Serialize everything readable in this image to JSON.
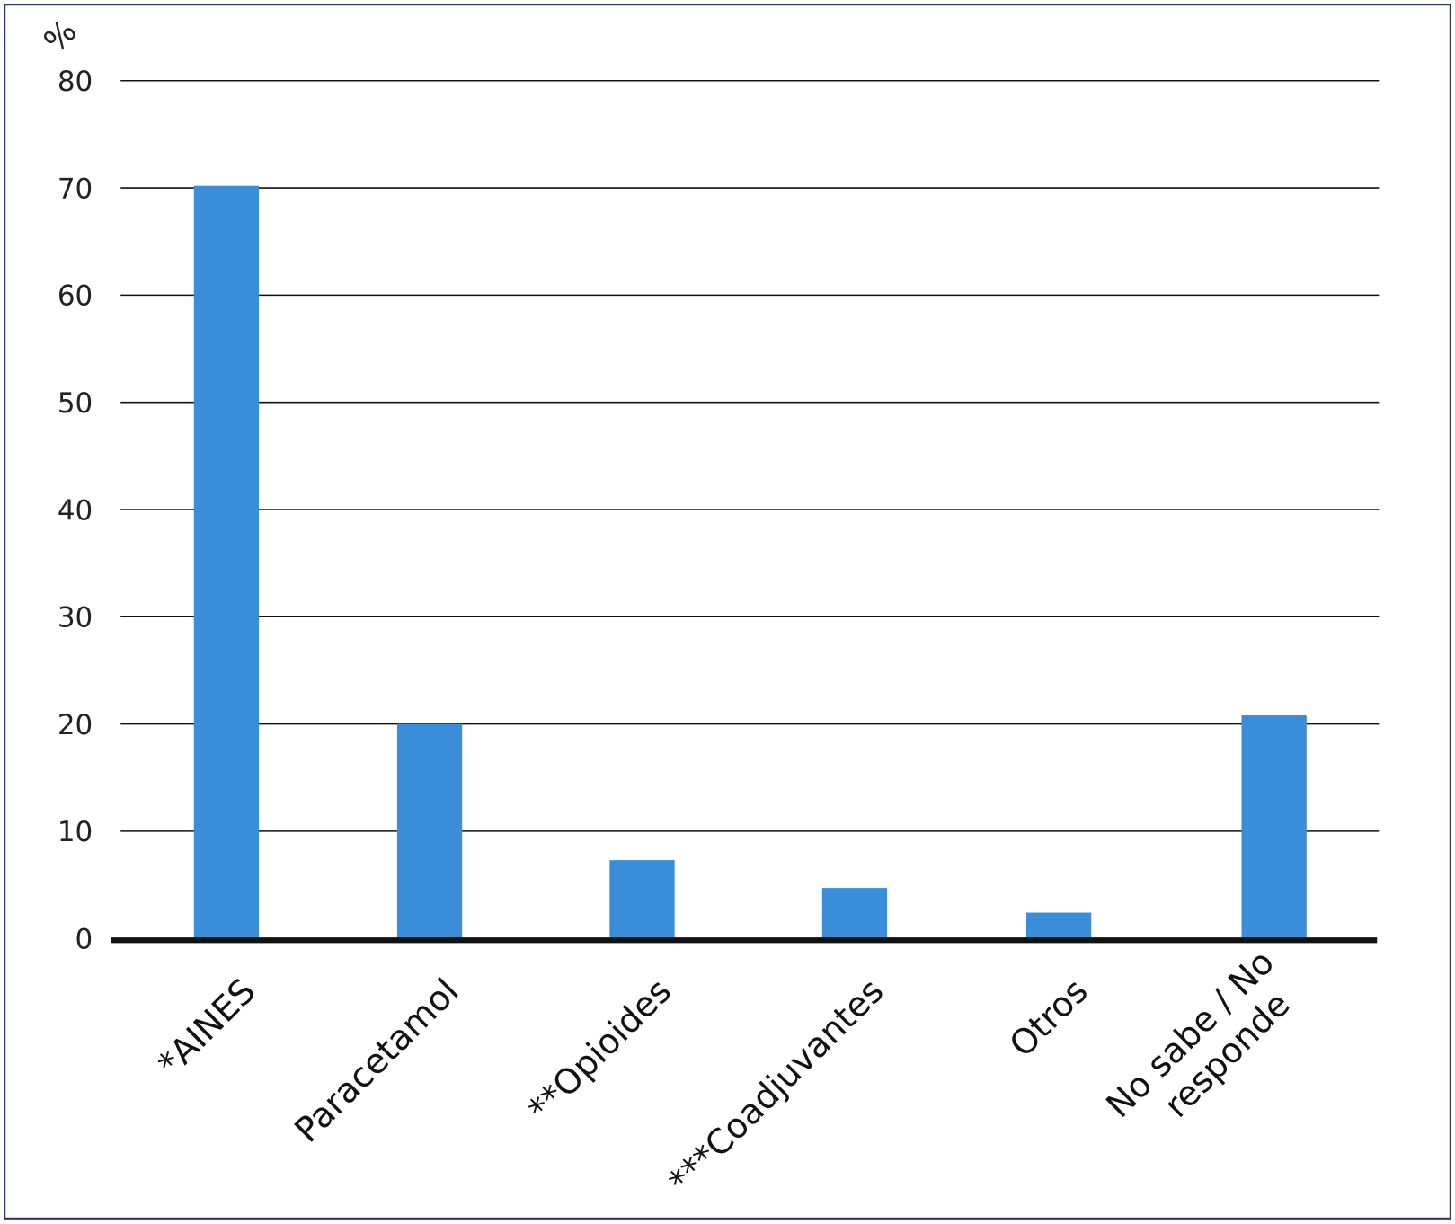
{
  "chart_data": {
    "type": "bar",
    "ylabel": "%",
    "categories": [
      "*AINES",
      "Paracetamol",
      "**Opioides",
      "***Coadjuvantes",
      "Otros",
      "No sabe / No responde"
    ],
    "category_lines": [
      [
        "*AINES"
      ],
      [
        "Paracetamol"
      ],
      [
        "**Opioides"
      ],
      [
        "***Coadjuvantes"
      ],
      [
        "Otros"
      ],
      [
        "No sabe / No",
        "responde"
      ]
    ],
    "values": [
      70.2,
      20.0,
      7.3,
      4.7,
      2.4,
      20.8
    ],
    "ylim": [
      0,
      80
    ],
    "yticks": [
      0,
      10,
      20,
      30,
      40,
      50,
      60,
      70,
      80
    ],
    "grid": true,
    "bar_color": "#3a8dd8",
    "frame_color": "#2b3566"
  }
}
